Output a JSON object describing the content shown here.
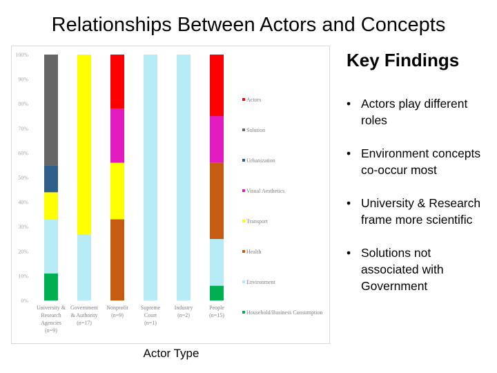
{
  "slide": {
    "title": "Relationships Between Actors and Concepts",
    "x_axis_title": "Actor Type"
  },
  "findings": {
    "title": "Key Findings",
    "items": [
      "Actors play different roles",
      "Environment concepts co-occur most",
      "University & Research frame more scientific",
      "Solutions not associated with Government"
    ]
  },
  "chart_data": {
    "type": "bar",
    "stacked": true,
    "normalized": true,
    "ylim": [
      0,
      100
    ],
    "yticks": [
      "0%",
      "10%",
      "20%",
      "30%",
      "40%",
      "50%",
      "60%",
      "70%",
      "80%",
      "90%",
      "100%"
    ],
    "grid": false,
    "legend_position": "right",
    "categories": [
      [
        "University &",
        "Research",
        "Agencies",
        "(n=9)"
      ],
      [
        "Government",
        "& Authority",
        "(n=17)"
      ],
      [
        "Nonprofit",
        "(n=9)"
      ],
      [
        "Supreme",
        "Court",
        "(n=1)"
      ],
      [
        "Industry",
        "(n=2)"
      ],
      [
        "People",
        "(n=15)"
      ]
    ],
    "series": [
      {
        "name": "Household/Business Consumption",
        "color": "#00b050",
        "values": [
          11,
          0,
          0,
          0,
          0,
          6
        ]
      },
      {
        "name": "Environment",
        "color": "#b7ebf5",
        "values": [
          22,
          27,
          0,
          100,
          100,
          19
        ]
      },
      {
        "name": "Health",
        "color": "#c55a11",
        "values": [
          0,
          0,
          33,
          0,
          0,
          31
        ]
      },
      {
        "name": "Transport",
        "color": "#ffff00",
        "values": [
          11,
          73,
          23,
          0,
          0,
          0
        ]
      },
      {
        "name": "Visual Aesthetics",
        "color": "#e21bc1",
        "values": [
          0,
          0,
          22,
          0,
          0,
          19
        ]
      },
      {
        "name": "Urbanization",
        "color": "#2e5f8a",
        "values": [
          11,
          0,
          0,
          0,
          0,
          0
        ]
      },
      {
        "name": "Solution",
        "color": "#666666",
        "values": [
          45,
          0,
          0,
          0,
          0,
          0
        ]
      },
      {
        "name": "Actors",
        "color": "#ff0000",
        "values": [
          0,
          0,
          22,
          0,
          0,
          25
        ]
      }
    ]
  }
}
